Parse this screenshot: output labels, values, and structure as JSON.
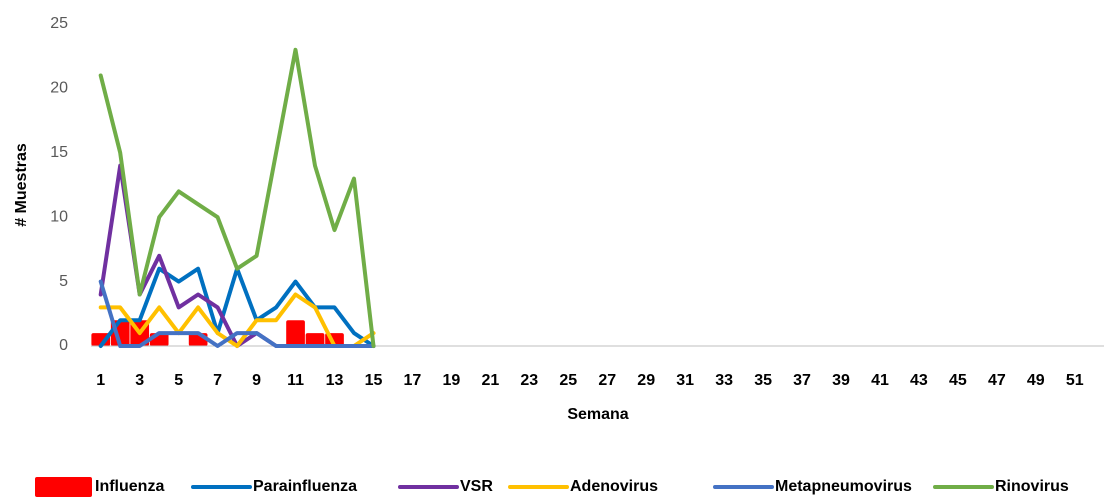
{
  "chart_data": {
    "type": "line",
    "y_label": "# Muestras",
    "x_label": "Semana",
    "categories": [
      "1",
      null,
      "3",
      null,
      "5",
      null,
      "7",
      null,
      "9",
      null,
      "11",
      null,
      "13",
      null,
      "15",
      null,
      "17",
      null,
      "19",
      null,
      "21",
      null,
      "23",
      null,
      "25",
      null,
      "27",
      null,
      "29",
      null,
      "31",
      null,
      "33",
      null,
      "35",
      null,
      "37",
      null,
      "39",
      null,
      "41",
      null,
      "43",
      null,
      "45",
      null,
      "47",
      null,
      "49",
      null,
      "51",
      null
    ],
    "ylim": [
      0,
      25
    ],
    "yticks": [
      0,
      5,
      10,
      15,
      20,
      25
    ],
    "grid": false,
    "legend": "bottom",
    "series": [
      {
        "name": "Influenza",
        "type": "bar",
        "color": "#ff0000",
        "values": [
          1,
          2,
          2,
          1,
          0,
          1,
          0,
          0,
          0,
          0,
          2,
          1,
          1,
          0,
          0,
          null,
          null,
          null,
          null,
          null,
          null,
          null,
          null,
          null,
          null,
          null,
          null,
          null,
          null,
          null,
          null,
          null,
          null,
          null,
          null,
          null,
          null,
          null,
          null,
          null,
          null,
          null,
          null,
          null,
          null,
          null,
          null,
          null,
          null,
          null,
          null,
          null
        ]
      },
      {
        "name": "Parainfluenza",
        "color": "#0070c0",
        "values": [
          0,
          2,
          2,
          6,
          5,
          6,
          1,
          6,
          2,
          3,
          5,
          3,
          3,
          1,
          0,
          null,
          null,
          null,
          null,
          null,
          null,
          null,
          null,
          null,
          null,
          null,
          null,
          null,
          null,
          null,
          null,
          null,
          null,
          null,
          null,
          null,
          null,
          null,
          null,
          null,
          null,
          null,
          null,
          null,
          null,
          null,
          null,
          null,
          null,
          null,
          null,
          null
        ]
      },
      {
        "name": "VSR",
        "color": "#7030a0",
        "values": [
          4,
          14,
          4,
          7,
          3,
          4,
          3,
          0,
          1,
          0,
          0,
          0,
          0,
          0,
          0,
          null,
          null,
          null,
          null,
          null,
          null,
          null,
          null,
          null,
          null,
          null,
          null,
          null,
          null,
          null,
          null,
          null,
          null,
          null,
          null,
          null,
          null,
          null,
          null,
          null,
          null,
          null,
          null,
          null,
          null,
          null,
          null,
          null,
          null,
          null,
          null,
          null
        ]
      },
      {
        "name": "Adenovirus",
        "color": "#ffc000",
        "values": [
          3,
          3,
          1,
          3,
          1,
          3,
          1,
          0,
          2,
          2,
          4,
          3,
          0,
          0,
          1,
          null,
          null,
          null,
          null,
          null,
          null,
          null,
          null,
          null,
          null,
          null,
          null,
          null,
          null,
          null,
          null,
          null,
          null,
          null,
          null,
          null,
          null,
          null,
          null,
          null,
          null,
          null,
          null,
          null,
          null,
          null,
          null,
          null,
          null,
          null,
          null,
          null
        ]
      },
      {
        "name": "Metapneumovirus",
        "color": "#4472c4",
        "values": [
          5,
          0,
          0,
          1,
          1,
          1,
          0,
          1,
          1,
          0,
          0,
          0,
          0,
          0,
          0,
          null,
          null,
          null,
          null,
          null,
          null,
          null,
          null,
          null,
          null,
          null,
          null,
          null,
          null,
          null,
          null,
          null,
          null,
          null,
          null,
          null,
          null,
          null,
          null,
          null,
          null,
          null,
          null,
          null,
          null,
          null,
          null,
          null,
          null,
          null,
          null,
          null
        ]
      },
      {
        "name": "Rinovirus",
        "color": "#70ad47",
        "values": [
          21,
          15,
          4,
          10,
          12,
          11,
          10,
          6,
          7,
          15,
          23,
          14,
          9,
          13,
          0,
          null,
          null,
          null,
          null,
          null,
          null,
          null,
          null,
          null,
          null,
          null,
          null,
          null,
          null,
          null,
          null,
          null,
          null,
          null,
          null,
          null,
          null,
          null,
          null,
          null,
          null,
          null,
          null,
          null,
          null,
          null,
          null,
          null,
          null,
          null,
          null,
          null
        ]
      }
    ]
  }
}
